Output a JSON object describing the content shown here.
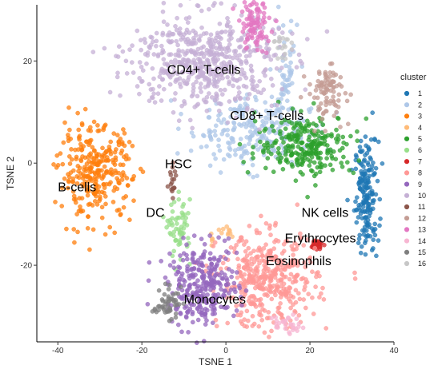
{
  "chart_data": {
    "type": "scatter",
    "title": "",
    "xlabel": "TSNE 1",
    "ylabel": "TSNE 2",
    "xlim": [
      -45,
      40
    ],
    "ylim": [
      -35,
      31
    ],
    "xticks": [
      -40,
      -20,
      0,
      20,
      40
    ],
    "yticks": [
      20,
      0,
      -20
    ],
    "grid": false,
    "legend": {
      "title": "cluster",
      "position": "right"
    },
    "series": [
      {
        "name": "1",
        "color": "#1F77B4",
        "clusters": [
          {
            "cx": 33.5,
            "cy": -6.5,
            "sx": 1.4,
            "sy": 5.5,
            "n": 180
          }
        ]
      },
      {
        "name": "2",
        "color": "#AEC7E8",
        "clusters": [
          {
            "cx": 6,
            "cy": 6.5,
            "sx": 7,
            "sy": 3.5,
            "n": 240
          },
          {
            "cx": 14,
            "cy": 17,
            "sx": 1.6,
            "sy": 6,
            "n": 60
          }
        ]
      },
      {
        "name": "3",
        "color": "#FF7F0E",
        "clusters": [
          {
            "cx": -31,
            "cy": -2,
            "sx": 4.3,
            "sy": 4.5,
            "n": 300
          }
        ]
      },
      {
        "name": "4",
        "color": "#FFBB78",
        "clusters": [
          {
            "cx": 0.5,
            "cy": -13.5,
            "sx": 0.9,
            "sy": 0.6,
            "n": 10
          },
          {
            "cx": -3,
            "cy": -15,
            "sx": 0.5,
            "sy": 0.6,
            "n": 5
          }
        ]
      },
      {
        "name": "5",
        "color": "#2CA02C",
        "clusters": [
          {
            "cx": 19,
            "cy": 3.5,
            "sx": 5.8,
            "sy": 3.0,
            "n": 260
          }
        ]
      },
      {
        "name": "6",
        "color": "#98DF8A",
        "clusters": [
          {
            "cx": -11,
            "cy": -13,
            "sx": 1.3,
            "sy": 2.8,
            "n": 60
          }
        ]
      },
      {
        "name": "7",
        "color": "#D62728",
        "clusters": [
          {
            "cx": 21.5,
            "cy": -16,
            "sx": 0.7,
            "sy": 0.5,
            "n": 25
          }
        ]
      },
      {
        "name": "8",
        "color": "#FF9896",
        "clusters": [
          {
            "cx": 10,
            "cy": -23,
            "sx": 5.8,
            "sy": 4.5,
            "n": 420
          }
        ]
      },
      {
        "name": "9",
        "color": "#9467BD",
        "clusters": [
          {
            "cx": -5.5,
            "cy": -24,
            "sx": 4.2,
            "sy": 3.8,
            "n": 300
          }
        ]
      },
      {
        "name": "10",
        "color": "#C5B0D5",
        "clusters": [
          {
            "cx": -5,
            "cy": 20,
            "sx": 8.8,
            "sy": 4.8,
            "n": 560
          }
        ]
      },
      {
        "name": "11",
        "color": "#8C564B",
        "clusters": [
          {
            "cx": -12.5,
            "cy": -3.5,
            "sx": 0.5,
            "sy": 1.5,
            "n": 18
          }
        ]
      },
      {
        "name": "12",
        "color": "#C49C94",
        "clusters": [
          {
            "cx": 24,
            "cy": 14,
            "sx": 2.2,
            "sy": 2.8,
            "n": 90
          }
        ]
      },
      {
        "name": "13",
        "color": "#E377C2",
        "clusters": [
          {
            "cx": 6.5,
            "cy": 27,
            "sx": 2.0,
            "sy": 2.4,
            "n": 90
          }
        ]
      },
      {
        "name": "14",
        "color": "#F7B6D2",
        "clusters": [
          {
            "cx": 15,
            "cy": -31.5,
            "sx": 1.7,
            "sy": 1.0,
            "n": 30
          }
        ]
      },
      {
        "name": "15",
        "color": "#7F7F7F",
        "clusters": [
          {
            "cx": -14,
            "cy": -27.5,
            "sx": 1.6,
            "sy": 1.5,
            "n": 50
          }
        ]
      },
      {
        "name": "16",
        "color": "#C7C7C7",
        "clusters": [
          {
            "cx": 13,
            "cy": 23,
            "sx": 1.2,
            "sy": 1.2,
            "n": 18
          }
        ]
      }
    ],
    "annotations": [
      {
        "text": "CD4+ T-cells",
        "x": -14,
        "y": 17.5
      },
      {
        "text": "CD8+ T-cells",
        "x": 1,
        "y": 8.5
      },
      {
        "text": "HSC",
        "x": -14.5,
        "y": -1
      },
      {
        "text": "B-cells",
        "x": -40,
        "y": -5.5
      },
      {
        "text": "DC",
        "x": -19,
        "y": -10.5
      },
      {
        "text": "NK cells",
        "x": 18,
        "y": -10.5
      },
      {
        "text": "Erythrocytes",
        "x": 14,
        "y": -15.5
      },
      {
        "text": "Eosinophils",
        "x": 9.5,
        "y": -20
      },
      {
        "text": "Monocytes",
        "x": -10,
        "y": -27.5
      }
    ]
  }
}
